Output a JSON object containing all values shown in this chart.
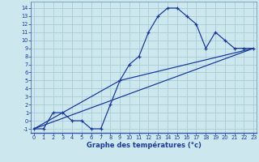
{
  "xlabel": "Graphe des températures (°c)",
  "bg_color": "#cce8ee",
  "line_color": "#1a3a9e",
  "grid_color": "#aaccd4",
  "axis_label_color": "#1a3a9e",
  "tick_label_color": "#1a3a9e",
  "spine_color": "#6688aa",
  "series1_x": [
    0,
    1,
    2,
    3,
    4,
    5,
    6,
    7,
    8,
    9,
    10,
    11,
    12,
    13,
    14,
    15,
    16,
    17,
    18,
    19,
    20,
    21,
    22,
    23
  ],
  "series1_y": [
    -1,
    -1,
    1,
    1,
    0,
    0,
    -1,
    -1,
    2,
    5,
    7,
    8,
    11,
    13,
    14,
    14,
    13,
    12,
    9,
    11,
    10,
    9,
    9,
    9
  ],
  "series2_x": [
    0,
    23
  ],
  "series2_y": [
    -1,
    9
  ],
  "series3_x": [
    0,
    9,
    23
  ],
  "series3_y": [
    -1,
    5,
    9
  ],
  "xlim": [
    -0.3,
    23.3
  ],
  "ylim": [
    -1.5,
    14.8
  ],
  "yticks": [
    -1,
    0,
    1,
    2,
    3,
    4,
    5,
    6,
    7,
    8,
    9,
    10,
    11,
    12,
    13,
    14
  ],
  "xticks": [
    0,
    1,
    2,
    3,
    4,
    5,
    6,
    7,
    8,
    9,
    10,
    11,
    12,
    13,
    14,
    15,
    16,
    17,
    18,
    19,
    20,
    21,
    22,
    23
  ],
  "ytick_labels": [
    "-1",
    "0",
    "1",
    "2",
    "3",
    "4",
    "5",
    "6",
    "7",
    "8",
    "9",
    "10",
    "11",
    "12",
    "13",
    "14"
  ],
  "xtick_labels": [
    "0",
    "1",
    "2",
    "3",
    "4",
    "5",
    "6",
    "7",
    "8",
    "9",
    "10",
    "11",
    "12",
    "13",
    "14",
    "15",
    "16",
    "17",
    "18",
    "19",
    "20",
    "21",
    "22",
    "23"
  ]
}
